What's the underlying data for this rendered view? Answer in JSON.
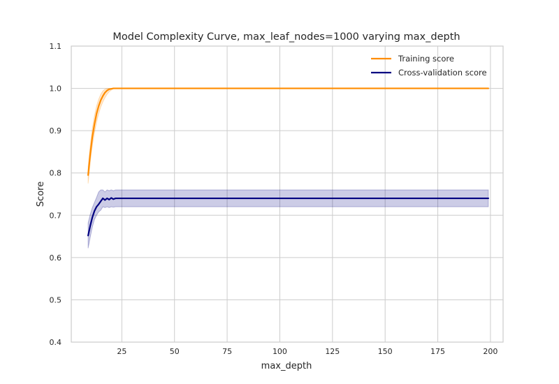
{
  "chart_data": {
    "type": "line",
    "title": "Model Complexity Curve, max_leaf_nodes=1000 varying max_depth",
    "xlabel": "max_depth",
    "ylabel": "Score",
    "xlim": [
      1,
      206
    ],
    "ylim": [
      0.4,
      1.1
    ],
    "xticks": [
      25,
      50,
      75,
      100,
      125,
      150,
      175,
      200
    ],
    "yticks": [
      0.4,
      0.5,
      0.6,
      0.7,
      0.8,
      0.9,
      1.0,
      1.1
    ],
    "ytick_labels": [
      "0.4",
      "0.5",
      "0.6",
      "0.7",
      "0.8",
      "0.9",
      "1.0",
      "1.1"
    ],
    "grid": true,
    "legend_position": "top-right",
    "series": [
      {
        "name": "Training score",
        "color": "#ff8c00",
        "x": [
          9,
          10,
          11,
          12,
          13,
          14,
          15,
          16,
          17,
          18,
          19,
          20,
          21,
          22,
          23,
          24,
          25,
          199
        ],
        "y": [
          0.795,
          0.845,
          0.885,
          0.915,
          0.94,
          0.958,
          0.972,
          0.982,
          0.99,
          0.995,
          0.998,
          0.999,
          1.0,
          1.0,
          1.0,
          1.0,
          1.0,
          1.0
        ],
        "y_low": [
          0.775,
          0.825,
          0.865,
          0.895,
          0.92,
          0.94,
          0.956,
          0.968,
          0.978,
          0.986,
          0.992,
          0.996,
          0.999,
          1.0,
          1.0,
          1.0,
          1.0,
          1.0
        ],
        "y_high": [
          0.815,
          0.865,
          0.905,
          0.935,
          0.958,
          0.974,
          0.986,
          0.994,
          0.998,
          1.0,
          1.0,
          1.0,
          1.0,
          1.0,
          1.0,
          1.0,
          1.0,
          1.0
        ]
      },
      {
        "name": "Cross-validation score",
        "color": "#000080",
        "x": [
          9,
          10,
          11,
          12,
          13,
          14,
          15,
          16,
          17,
          18,
          19,
          20,
          21,
          22,
          23,
          24,
          199
        ],
        "y": [
          0.652,
          0.675,
          0.695,
          0.71,
          0.72,
          0.726,
          0.733,
          0.74,
          0.736,
          0.74,
          0.737,
          0.741,
          0.738,
          0.74,
          0.74,
          0.74,
          0.74
        ],
        "y_low": [
          0.622,
          0.648,
          0.672,
          0.69,
          0.7,
          0.708,
          0.712,
          0.72,
          0.718,
          0.72,
          0.718,
          0.72,
          0.719,
          0.72,
          0.72,
          0.72,
          0.72
        ],
        "y_high": [
          0.682,
          0.702,
          0.718,
          0.73,
          0.742,
          0.755,
          0.76,
          0.76,
          0.755,
          0.76,
          0.758,
          0.76,
          0.758,
          0.76,
          0.76,
          0.76,
          0.76
        ]
      }
    ]
  }
}
